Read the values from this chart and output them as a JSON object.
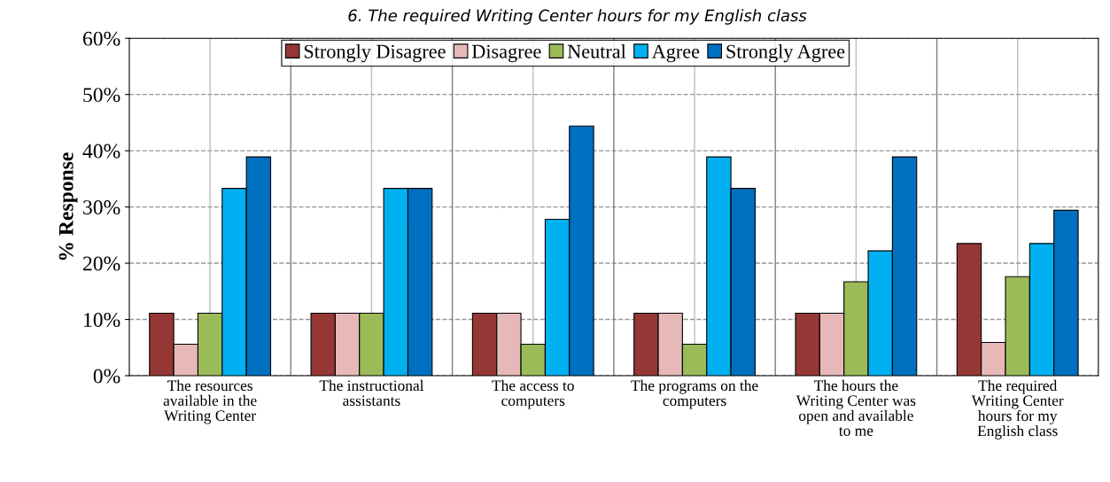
{
  "chart_data": {
    "type": "bar",
    "ylabel": "% Response",
    "annotations": [
      "6. The required Writing Center hours for my English class"
    ],
    "categories": [
      "The resources\navailable in the\nWriting Center",
      "The instructional\nassistants",
      "The access to\ncomputers",
      "The programs on the\ncomputers",
      "The hours the\nWriting Center was\nopen and available\nto me",
      "The required\nWriting Center\nhours for my\nEnglish class"
    ],
    "series": [
      {
        "name": "Strongly Disagree",
        "color": "#953735",
        "values": [
          11.1,
          11.1,
          11.1,
          11.1,
          11.1,
          23.5
        ]
      },
      {
        "name": "Disagree",
        "color": "#e6b9b8",
        "values": [
          5.6,
          11.1,
          11.1,
          11.1,
          11.1,
          5.9
        ]
      },
      {
        "name": "Neutral",
        "color": "#9bbb59",
        "values": [
          11.1,
          11.1,
          5.6,
          5.6,
          16.7,
          17.6
        ]
      },
      {
        "name": "Agree",
        "color": "#00b0f0",
        "values": [
          33.3,
          33.3,
          27.8,
          38.9,
          22.2,
          23.5
        ]
      },
      {
        "name": "Strongly Agree",
        "color": "#0070c0",
        "values": [
          38.9,
          33.3,
          44.4,
          33.3,
          38.9,
          29.4
        ]
      }
    ],
    "ylim": [
      0,
      60
    ],
    "yticks": [
      {
        "value": 0,
        "label": "0%"
      },
      {
        "value": 10,
        "label": "10%"
      },
      {
        "value": 20,
        "label": "20%"
      },
      {
        "value": 30,
        "label": "30%"
      },
      {
        "value": 40,
        "label": "40%"
      },
      {
        "value": 50,
        "label": "50%"
      },
      {
        "value": 60,
        "label": "60%"
      }
    ],
    "grid": true,
    "legend": "top"
  }
}
